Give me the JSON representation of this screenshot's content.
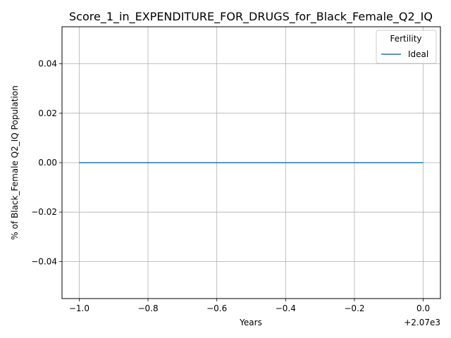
{
  "chart_data": {
    "type": "line",
    "title": "Score_1_in_EXPENDITURE_FOR_DRUGS_for_Black_Female_Q2_IQ",
    "xlabel": "Years",
    "ylabel": "% of Black_Female Q2_IQ Population",
    "x_offset_label": "+2.07e3",
    "xlim": [
      -1.05,
      0.05
    ],
    "ylim": [
      -0.055,
      0.055
    ],
    "x_ticks": [
      -1.0,
      -0.8,
      -0.6,
      -0.4,
      -0.2,
      0.0
    ],
    "x_tick_labels": [
      "−1.0",
      "−0.8",
      "−0.6",
      "−0.4",
      "−0.2",
      "0.0"
    ],
    "y_ticks": [
      -0.04,
      -0.02,
      0.0,
      0.02,
      0.04
    ],
    "y_tick_labels": [
      "−0.04",
      "−0.02",
      "0.00",
      "0.02",
      "0.04"
    ],
    "grid": true,
    "legend": {
      "title": "Fertility",
      "placement": "top-right"
    },
    "series": [
      {
        "name": "Ideal",
        "color": "#1f77b4",
        "x": [
          -1.0,
          0.0
        ],
        "y": [
          0.0,
          0.0
        ]
      }
    ]
  }
}
